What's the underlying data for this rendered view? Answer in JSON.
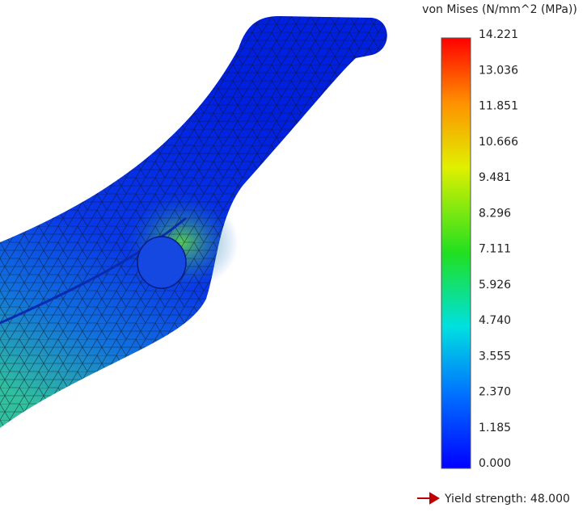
{
  "legend": {
    "title": "von Mises (N/mm^2 (MPa))",
    "ticks": [
      "14.221",
      "13.036",
      "11.851",
      "10.666",
      "9.481",
      "8.296",
      "7.111",
      "5.926",
      "4.740",
      "3.555",
      "2.370",
      "1.185",
      "0.000"
    ]
  },
  "yield": {
    "label": "Yield strength: 48.000"
  }
}
